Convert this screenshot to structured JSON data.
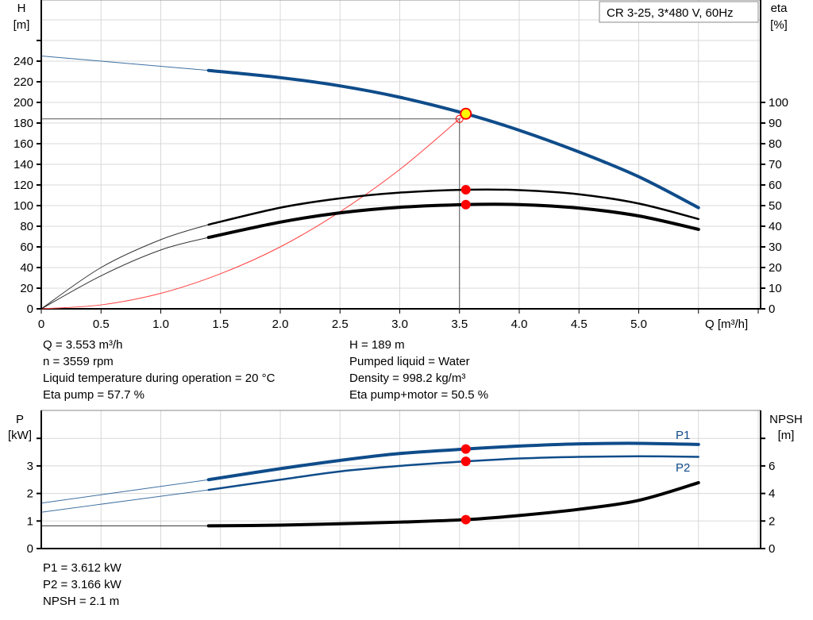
{
  "chart_data": [
    {
      "type": "line",
      "title": "CR 3-25, 3*480 V, 60Hz",
      "xlabel": "Q [m³/h]",
      "ylabel_left": [
        "H",
        "[m]"
      ],
      "ylabel_right": [
        "eta",
        "[%]"
      ],
      "xlim": [
        0,
        6.03
      ],
      "ylim_left": [
        0,
        300
      ],
      "ylim_right": [
        0,
        150
      ],
      "x_ticks": [
        "0",
        "0.5",
        "1.0",
        "1.5",
        "2.0",
        "2.5",
        "3.0",
        "3.5",
        "4.0",
        "4.5",
        "5.0"
      ],
      "x_tick_values": [
        0,
        0.5,
        1,
        1.5,
        2,
        2.5,
        3,
        3.5,
        4,
        4.5,
        5
      ],
      "y_left_ticks": [
        0,
        20,
        40,
        60,
        80,
        100,
        120,
        140,
        160,
        180,
        200,
        220,
        240
      ],
      "y_right_ticks": [
        0,
        10,
        20,
        30,
        40,
        50,
        60,
        70,
        80,
        90,
        100
      ],
      "grid": true,
      "series": [
        {
          "key": "H",
          "axis": "left",
          "color": "#0f4c8a",
          "x": [
            0,
            0.5,
            1.0,
            1.4,
            2.0,
            2.5,
            3.0,
            3.553,
            4.0,
            4.5,
            5.0,
            5.5
          ],
          "y": [
            245,
            240,
            235,
            231,
            224,
            216,
            205,
            189,
            173,
            152,
            128,
            98
          ]
        },
        {
          "key": "eta_pump",
          "axis": "right",
          "color": "#000000",
          "x": [
            0,
            0.5,
            1.0,
            1.4,
            2.0,
            2.5,
            3.0,
            3.553,
            4.0,
            4.5,
            5.0,
            5.5
          ],
          "y": [
            0,
            20,
            33.5,
            40.8,
            49,
            53.5,
            56.3,
            57.7,
            57.5,
            55.5,
            51,
            43.5
          ]
        },
        {
          "key": "eta_pump_motor",
          "axis": "right",
          "color": "#000000",
          "x": [
            0,
            0.5,
            1.0,
            1.4,
            2.0,
            2.5,
            3.0,
            3.553,
            4.0,
            4.5,
            5.0,
            5.5
          ],
          "y": [
            0,
            16,
            28.5,
            34.6,
            42,
            46.5,
            49.2,
            50.5,
            50.5,
            48.8,
            45,
            38.5
          ]
        },
        {
          "key": "system_curve",
          "axis": "left",
          "color": "#ff4040",
          "x": [
            0,
            0.5,
            1.0,
            1.5,
            2.0,
            2.5,
            3.0,
            3.5
          ],
          "y": [
            0,
            3.8,
            15,
            34,
            60,
            94,
            135,
            184
          ]
        }
      ],
      "operating_point": {
        "Q": 3.553,
        "H": 189,
        "eta_pump": 57.7,
        "eta_pump_motor": 50.5
      },
      "system_point": {
        "Q": 3.5,
        "H": 184
      }
    },
    {
      "type": "line",
      "ylabel_left": [
        "P",
        "[kW]"
      ],
      "ylabel_right": [
        "NPSH",
        "[m]"
      ],
      "xlim": [
        0,
        6.03
      ],
      "ylim_left": [
        0,
        5
      ],
      "ylim_right": [
        0,
        10
      ],
      "y_left_ticks": [
        0,
        1,
        2,
        3,
        4
      ],
      "y_left_tick_labels": [
        "0",
        "1",
        "2",
        "3",
        ""
      ],
      "y_right_ticks": [
        0,
        2,
        4,
        6,
        8
      ],
      "y_right_tick_labels": [
        "0",
        "2",
        "4",
        "6",
        ""
      ],
      "grid": true,
      "series": [
        {
          "key": "P1",
          "name": "P1",
          "axis": "left",
          "color": "#0f4c8a",
          "x": [
            0,
            1.4,
            2.0,
            2.5,
            3.0,
            3.553,
            4.0,
            4.5,
            5.0,
            5.5
          ],
          "y": [
            1.65,
            2.5,
            2.9,
            3.2,
            3.45,
            3.612,
            3.72,
            3.8,
            3.82,
            3.78
          ]
        },
        {
          "key": "P2",
          "name": "P2",
          "axis": "left",
          "color": "#0f4c8a",
          "x": [
            0,
            1.4,
            2.0,
            2.5,
            3.0,
            3.553,
            4.0,
            4.5,
            5.0,
            5.5
          ],
          "y": [
            1.32,
            2.13,
            2.5,
            2.8,
            3.0,
            3.166,
            3.27,
            3.33,
            3.35,
            3.33
          ]
        },
        {
          "key": "NPSH",
          "axis": "right",
          "color": "#000000",
          "x": [
            0,
            1.4,
            2.0,
            2.5,
            3.0,
            3.553,
            4.0,
            4.5,
            5.0,
            5.5
          ],
          "y": [
            1.65,
            1.65,
            1.7,
            1.8,
            1.92,
            2.1,
            2.4,
            2.85,
            3.5,
            4.78
          ]
        }
      ],
      "operating_point": {
        "Q": 3.553,
        "P1": 3.612,
        "P2": 3.166,
        "NPSH": 2.1
      }
    }
  ],
  "info_top": {
    "left": [
      "Q = 3.553 m³/h",
      "n = 3559 rpm",
      "Liquid temperature during operation = 20 °C",
      "Eta pump = 57.7 %"
    ],
    "right": [
      "H = 189 m",
      "Pumped liquid = Water",
      "Density = 998.2 kg/m³",
      "Eta pump+motor = 50.5 %"
    ]
  },
  "info_bottom": [
    "P1 = 3.612 kW",
    "P2 = 3.166 kW",
    "NPSH = 2.1 m"
  ],
  "colors": {
    "grid": "#d8d8d8",
    "operating_point_fill": "#ffff00",
    "marker": "#ff0000"
  }
}
